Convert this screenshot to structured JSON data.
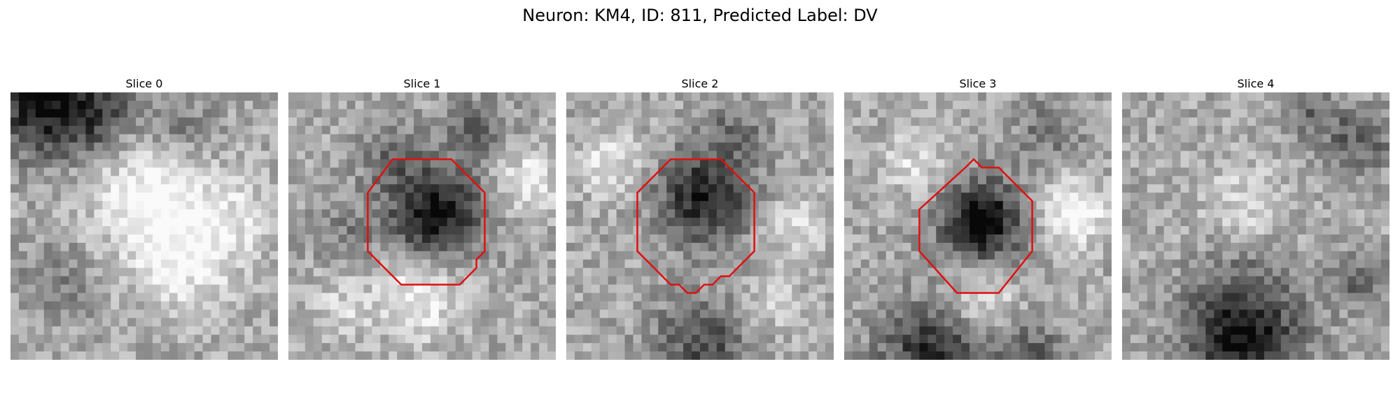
{
  "figure": {
    "title": "Neuron: KM4, ID: 811, Predicted Label: DV"
  },
  "outline_color": "#e01010",
  "panels": [
    {
      "title": "Slice 0",
      "has_contour": false
    },
    {
      "title": "Slice 1",
      "has_contour": true
    },
    {
      "title": "Slice 2",
      "has_contour": true
    },
    {
      "title": "Slice 3",
      "has_contour": true
    },
    {
      "title": "Slice 4",
      "has_contour": false
    }
  ]
}
